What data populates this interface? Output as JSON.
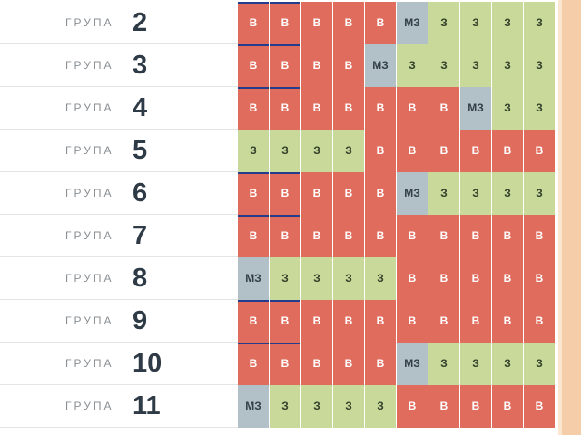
{
  "schedule": {
    "group_word": "ГРУПА",
    "rows": [
      {
        "number": "2",
        "cells": [
          "В",
          "В",
          "В",
          "В",
          "В",
          "МЗ",
          "З",
          "З",
          "З",
          "З"
        ]
      },
      {
        "number": "3",
        "cells": [
          "В",
          "В",
          "В",
          "В",
          "МЗ",
          "З",
          "З",
          "З",
          "З",
          "З"
        ]
      },
      {
        "number": "4",
        "cells": [
          "В",
          "В",
          "В",
          "В",
          "В",
          "В",
          "В",
          "МЗ",
          "З",
          "З"
        ]
      },
      {
        "number": "5",
        "cells": [
          "З",
          "З",
          "З",
          "З",
          "В",
          "В",
          "В",
          "В",
          "В",
          "В"
        ]
      },
      {
        "number": "6",
        "cells": [
          "В",
          "В",
          "В",
          "В",
          "В",
          "МЗ",
          "З",
          "З",
          "З",
          "З"
        ]
      },
      {
        "number": "7",
        "cells": [
          "В",
          "В",
          "В",
          "В",
          "В",
          "В",
          "В",
          "В",
          "В",
          "В"
        ]
      },
      {
        "number": "8",
        "cells": [
          "МЗ",
          "З",
          "З",
          "З",
          "З",
          "В",
          "В",
          "В",
          "В",
          "В"
        ]
      },
      {
        "number": "9",
        "cells": [
          "В",
          "В",
          "В",
          "В",
          "В",
          "В",
          "В",
          "В",
          "В",
          "В"
        ]
      },
      {
        "number": "10",
        "cells": [
          "В",
          "В",
          "В",
          "В",
          "В",
          "МЗ",
          "З",
          "З",
          "З",
          "З"
        ]
      },
      {
        "number": "11",
        "cells": [
          "МЗ",
          "З",
          "З",
          "З",
          "З",
          "В",
          "В",
          "В",
          "В",
          "В"
        ]
      }
    ]
  },
  "colors": {
    "off": "#e06c5d",
    "on": "#c9d99a",
    "maybe": "#b2c1c7",
    "marker": "#243c8c"
  }
}
